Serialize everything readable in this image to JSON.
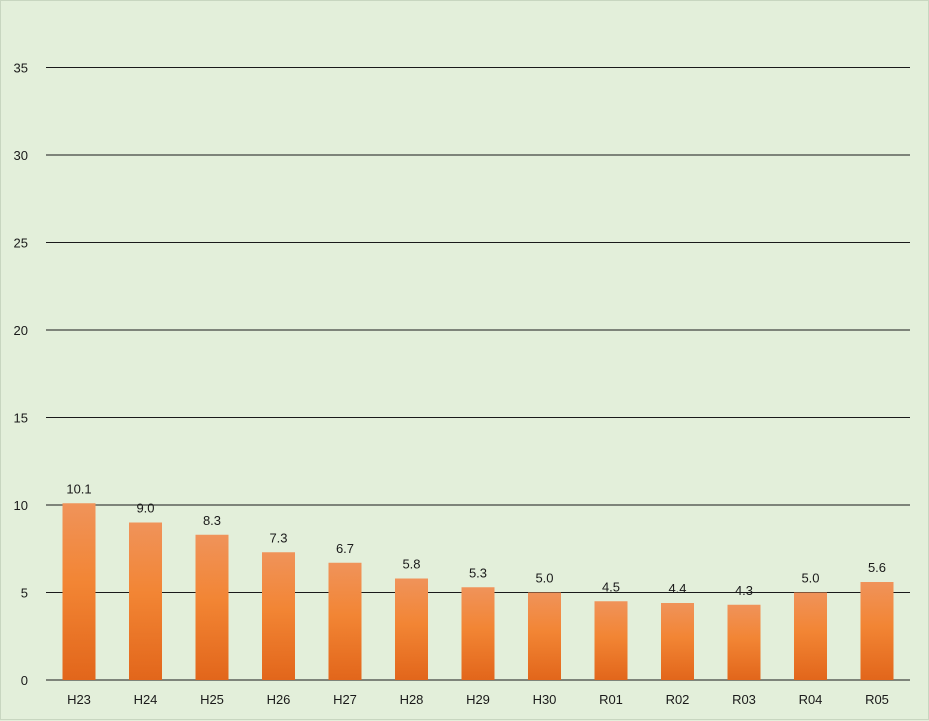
{
  "chart_data": {
    "type": "bar",
    "title": "",
    "xlabel": "",
    "ylabel": "",
    "categories": [
      "H23",
      "H24",
      "H25",
      "H26",
      "H27",
      "H28",
      "H29",
      "H30",
      "R01",
      "R02",
      "R03",
      "R04",
      "R05"
    ],
    "values": [
      10.1,
      9.0,
      8.3,
      7.3,
      6.7,
      5.8,
      5.3,
      5.0,
      4.5,
      4.4,
      4.3,
      5.0,
      5.6
    ],
    "data_labels": [
      "10.1",
      "9.0",
      "8.3",
      "7.3",
      "6.7",
      "5.8",
      "5.3",
      "5.0",
      "4.5",
      "4.4",
      "4.3",
      "5.0",
      "5.6"
    ],
    "y_ticks": [
      0,
      5,
      10,
      15,
      20,
      25,
      30,
      35
    ],
    "ylim": [
      0,
      35
    ],
    "grid": true,
    "legend": "none",
    "colors": {
      "background": "#e3efda",
      "bar_top": "#f0935a",
      "bar_mid": "#f28534",
      "bar_bottom": "#e2661b",
      "gridline": "#1a1a1a",
      "text": "#1a1a1a"
    }
  }
}
